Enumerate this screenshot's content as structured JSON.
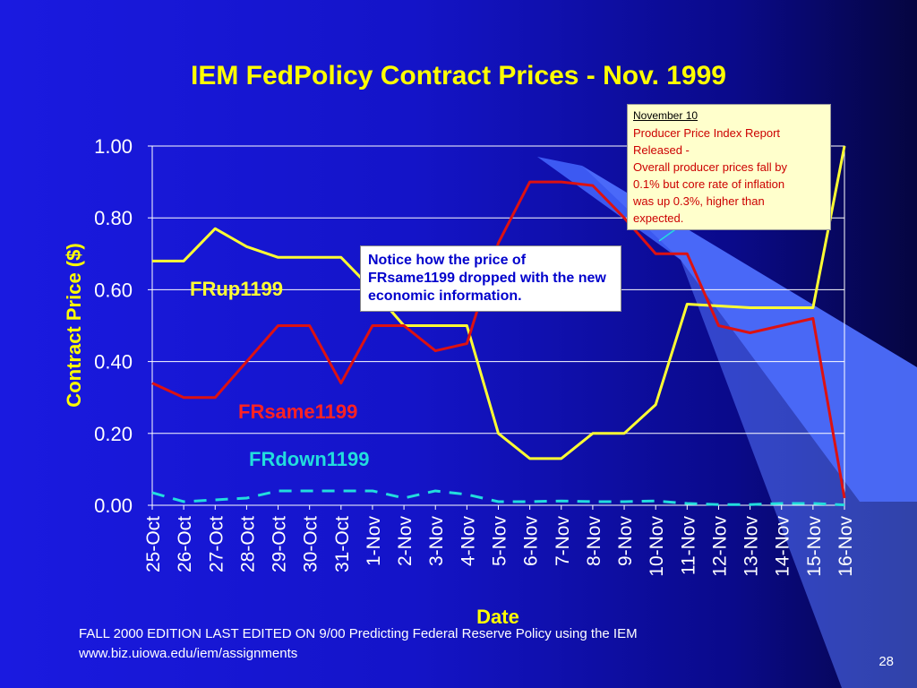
{
  "slide": {
    "footer_line1": "FALL 2000  EDITION LAST EDITED ON 9/00  Predicting Federal Reserve Policy using the IEM",
    "footer_line2": "www.biz.uiowa.edu/iem/assignments",
    "page_number": "28"
  },
  "chart_data": {
    "type": "line",
    "title": "IEM FedPolicy Contract Prices - Nov. 1999",
    "xlabel": "Date",
    "ylabel": "Contract Price ($)",
    "ylim": [
      0,
      1
    ],
    "yticks": [
      "0.00",
      "0.20",
      "0.40",
      "0.60",
      "0.80",
      "1.00"
    ],
    "grid": true,
    "categories": [
      "25-Oct",
      "26-Oct",
      "27-Oct",
      "28-Oct",
      "29-Oct",
      "30-Oct",
      "31-Oct",
      "1-Nov",
      "2-Nov",
      "3-Nov",
      "4-Nov",
      "5-Nov",
      "6-Nov",
      "7-Nov",
      "8-Nov",
      "9-Nov",
      "10-Nov",
      "11-Nov",
      "12-Nov",
      "13-Nov",
      "14-Nov",
      "15-Nov",
      "16-Nov"
    ],
    "series": [
      {
        "name": "FRup1199",
        "color": "#ffff33",
        "dash": false,
        "values": [
          0.68,
          0.68,
          0.77,
          0.72,
          0.69,
          0.69,
          0.69,
          0.6,
          0.5,
          0.5,
          0.5,
          0.2,
          0.13,
          0.13,
          0.2,
          0.2,
          0.28,
          0.56,
          0.555,
          0.55,
          0.55,
          0.55,
          1.0
        ]
      },
      {
        "name": "FRsame1199",
        "color": "#dd1111",
        "dash": false,
        "values": [
          0.34,
          0.3,
          0.3,
          0.4,
          0.5,
          0.5,
          0.34,
          0.5,
          0.5,
          0.43,
          0.45,
          0.73,
          0.9,
          0.9,
          0.89,
          0.8,
          0.7,
          0.7,
          0.5,
          0.48,
          0.5,
          0.52,
          0.02
        ]
      },
      {
        "name": "FRdown1199",
        "color": "#22dddd",
        "dash": true,
        "values": [
          0.035,
          0.01,
          0.015,
          0.02,
          0.04,
          0.04,
          0.04,
          0.04,
          0.02,
          0.04,
          0.03,
          0.01,
          0.01,
          0.012,
          0.01,
          0.01,
          0.012,
          0.005,
          0.002,
          0.002,
          0.005,
          0.005,
          0.001
        ]
      }
    ],
    "annotations": {
      "november_header": "November 10",
      "november_text": [
        "Producer Price Index Report",
        "Released -",
        "Overall producer prices fall by",
        "0.1% but core rate of inflation",
        "was up 0.3%, higher than",
        "expected."
      ],
      "callout": "Notice how the price of FRsame1199 dropped with the new economic information."
    }
  },
  "theme": {
    "axis_text": "#ffffff",
    "label_yellow": "#ffff00",
    "grid": "#ffffff",
    "beam": "#5577ff"
  }
}
